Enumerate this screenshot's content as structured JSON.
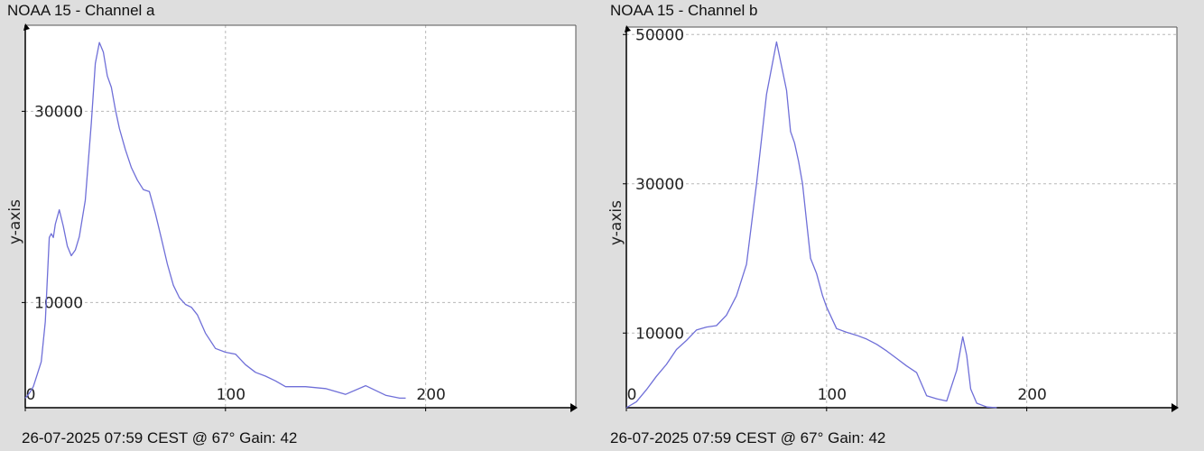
{
  "charts": [
    {
      "title": "NOAA 15 - Channel a",
      "footer": "26-07-2025 07:59 CEST @ 67° Gain: 42"
    },
    {
      "title": "NOAA 15 - Channel b",
      "footer": "26-07-2025 07:59 CEST @ 67° Gain: 42"
    }
  ],
  "chart_data": [
    {
      "type": "line",
      "title": "NOAA 15 - Channel a",
      "xlabel": "",
      "ylabel": "y-axis",
      "xlim": [
        0,
        275
      ],
      "ylim": [
        -1000,
        39000
      ],
      "x_ticks": [
        0,
        100,
        200
      ],
      "x_tick_labels": [
        "0",
        "100",
        "200"
      ],
      "y_ticks": [
        10000,
        30000
      ],
      "y_tick_labels": [
        "10000",
        "30000"
      ],
      "grid": true,
      "line_color": "#6f6fd8",
      "series": [
        {
          "x": [
            0,
            2,
            4,
            6,
            8,
            10,
            12,
            13,
            14,
            15,
            17,
            19,
            21,
            23,
            25,
            27,
            30,
            33,
            35,
            37,
            39,
            41,
            43,
            45,
            47,
            50,
            53,
            56,
            59,
            62,
            65,
            68,
            71,
            74,
            77,
            80,
            83,
            86,
            90,
            95,
            100,
            105,
            110,
            115,
            120,
            125,
            130,
            140,
            150,
            160,
            170,
            180,
            187,
            190
          ],
          "y": [
            0,
            500,
            1200,
            2500,
            3800,
            8000,
            16800,
            17200,
            16800,
            18200,
            19700,
            18000,
            15900,
            14900,
            15500,
            16900,
            20700,
            28800,
            35000,
            37200,
            36200,
            33700,
            32500,
            30200,
            28200,
            26000,
            24100,
            22800,
            21800,
            21600,
            19300,
            16700,
            14000,
            11800,
            10500,
            9800,
            9500,
            8700,
            6800,
            5200,
            4800,
            4600,
            3500,
            2700,
            2300,
            1800,
            1200,
            1200,
            1000,
            400,
            1300,
            300,
            0,
            0
          ]
        }
      ]
    },
    {
      "type": "line",
      "title": "NOAA 15 - Channel b",
      "xlabel": "",
      "ylabel": "y-axis",
      "xlim": [
        0,
        275
      ],
      "ylim": [
        0,
        51000
      ],
      "x_ticks": [
        0,
        100,
        200
      ],
      "x_tick_labels": [
        "0",
        "100",
        "200"
      ],
      "y_ticks": [
        10000,
        30000,
        50000
      ],
      "y_tick_labels": [
        "10000",
        "30000",
        "50000"
      ],
      "grid": true,
      "line_color": "#6f6fd8",
      "series": [
        {
          "x": [
            0,
            5,
            10,
            15,
            20,
            25,
            30,
            35,
            40,
            45,
            50,
            55,
            60,
            65,
            70,
            75,
            80,
            82,
            84,
            86,
            88,
            90,
            92,
            95,
            98,
            100,
            105,
            110,
            115,
            120,
            125,
            130,
            135,
            140,
            145,
            150,
            155,
            160,
            165,
            168,
            170,
            172,
            175,
            180,
            185
          ],
          "y": [
            0,
            800,
            2400,
            4200,
            5800,
            7800,
            9000,
            10400,
            10800,
            11000,
            12400,
            15000,
            19200,
            30000,
            42000,
            49000,
            42500,
            37000,
            35500,
            33000,
            30000,
            25000,
            20000,
            18000,
            15000,
            13500,
            10600,
            10100,
            9700,
            9200,
            8500,
            7600,
            6600,
            5600,
            4700,
            1600,
            1200,
            900,
            5000,
            9500,
            7000,
            2500,
            600,
            100,
            0
          ]
        }
      ]
    }
  ]
}
